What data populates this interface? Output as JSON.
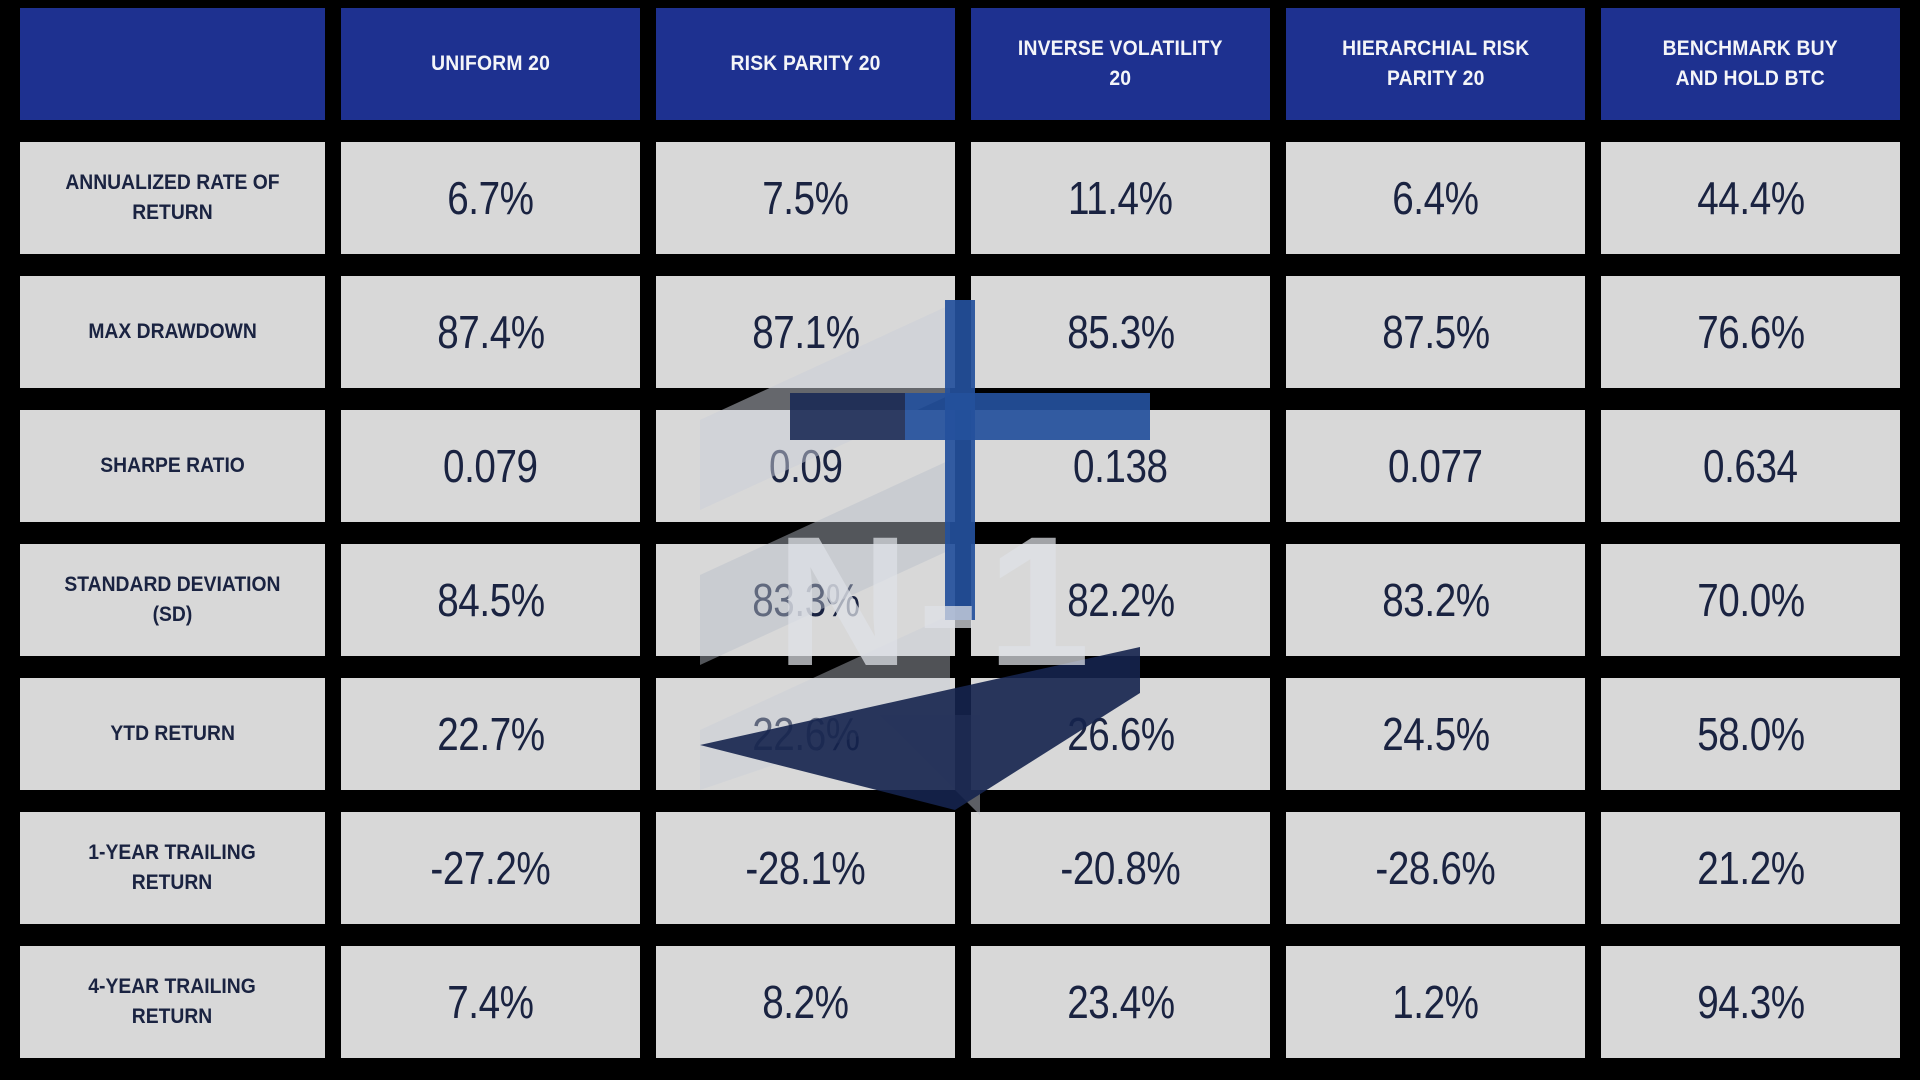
{
  "chart_data": {
    "type": "table",
    "columns": [
      "",
      "UNIFORM 20",
      "RISK PARITY 20",
      "INVERSE VOLATILITY\n20",
      "HIERARCHIAL RISK\nPARITY 20",
      "BENCHMARK BUY\nAND HOLD BTC"
    ],
    "rows": [
      {
        "label": "ANNUALIZED RATE OF\nRETURN",
        "values": [
          "6.7%",
          "7.5%",
          "11.4%",
          "6.4%",
          "44.4%"
        ]
      },
      {
        "label": "MAX DRAWDOWN",
        "values": [
          "87.4%",
          "87.1%",
          "85.3%",
          "87.5%",
          "76.6%"
        ]
      },
      {
        "label": "SHARPE RATIO",
        "values": [
          "0.079",
          "0.09",
          "0.138",
          "0.077",
          "0.634"
        ]
      },
      {
        "label": "STANDARD DEVIATION\n(SD)",
        "values": [
          "84.5%",
          "83.3%",
          "82.2%",
          "83.2%",
          "70.0%"
        ]
      },
      {
        "label": "YTD RETURN",
        "values": [
          "22.7%",
          "22.6%",
          "26.6%",
          "24.5%",
          "58.0%"
        ]
      },
      {
        "label": "1-YEAR TRAILING\nRETURN",
        "values": [
          "-27.2%",
          "-28.1%",
          "-20.8%",
          "-28.6%",
          "21.2%"
        ]
      },
      {
        "label": "4-YEAR TRAILING\nRETURN",
        "values": [
          "7.4%",
          "8.2%",
          "23.4%",
          "1.2%",
          "94.3%"
        ]
      }
    ],
    "title": "",
    "legend": []
  },
  "watermark": {
    "text": "N-1"
  },
  "colors": {
    "header-blue": "#1e3190",
    "cell-gray": "#d8d8d8",
    "text-navy": "#1a2341",
    "wm-blue": "#24509c",
    "wm-navy": "#15234e",
    "wm-gray": "#c3c8d3"
  }
}
